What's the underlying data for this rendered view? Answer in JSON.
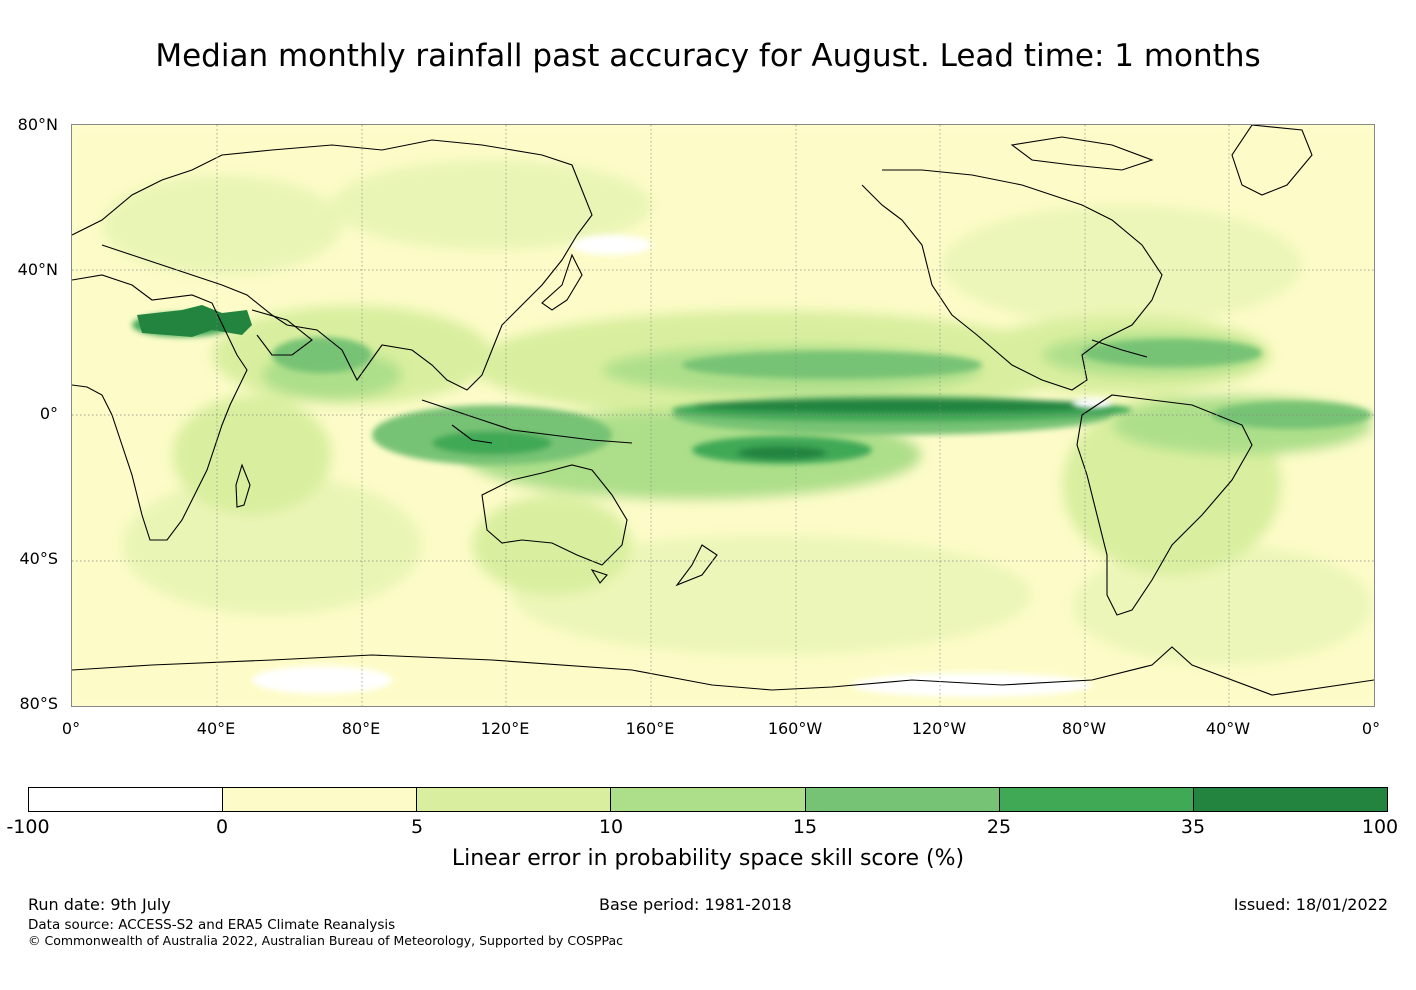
{
  "title": "Median monthly rainfall past accuracy for August. Lead time: 1 months",
  "map": {
    "lat_labels": [
      "80°N",
      "40°N",
      "0°",
      "40°S",
      "80°S"
    ],
    "lon_labels": [
      "0°",
      "40°E",
      "80°E",
      "120°E",
      "160°E",
      "160°W",
      "120°W",
      "80°W",
      "40°W",
      "0°"
    ],
    "background_color": "#fffbd0",
    "coastline_color": "#000000",
    "gridline_style": "dotted"
  },
  "colorbar": {
    "title": "Linear error in probability space skill score (%)",
    "ticks": [
      "-100",
      "0",
      "5",
      "10",
      "15",
      "25",
      "35",
      "100"
    ],
    "colors": [
      "#ffffff",
      "#fdfcc8",
      "#d9ef9f",
      "#addf8a",
      "#77c375",
      "#3fa956",
      "#23843f"
    ]
  },
  "footer": {
    "run_date": "Run date: 9th July",
    "base_period": "Base period: 1981-2018",
    "issued": "Issued: 18/01/2022",
    "data_source": "Data source: ACCESS-S2 and ERA5 Climate Reanalysis",
    "copyright": "© Commonwealth of Australia 2022, Australian Bureau of Meteorology, Supported by COSPPac"
  }
}
